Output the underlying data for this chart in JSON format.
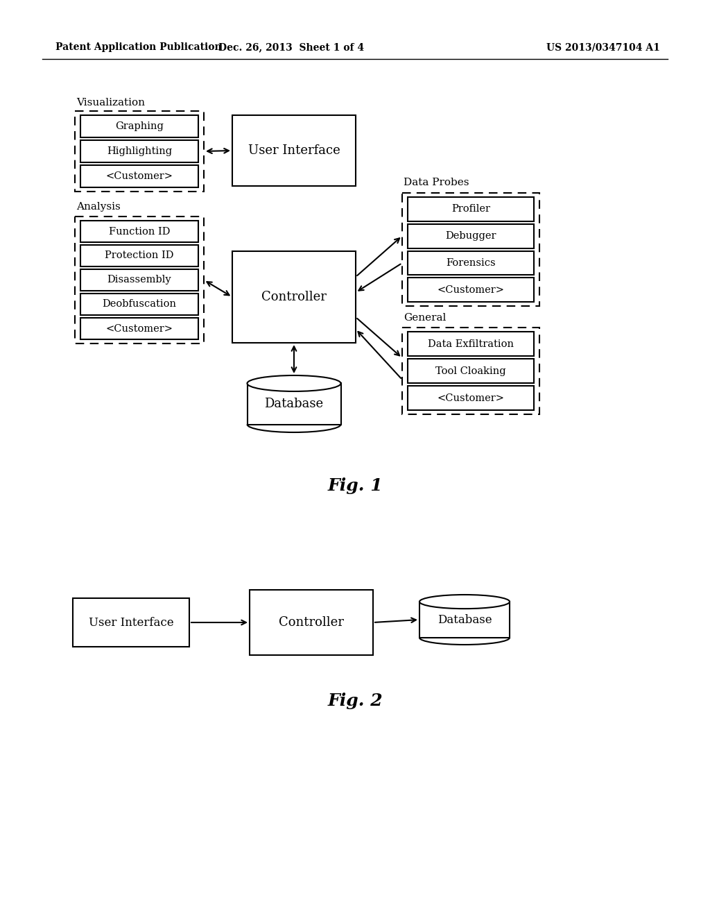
{
  "bg_color": "#ffffff",
  "header_left": "Patent Application Publication",
  "header_mid": "Dec. 26, 2013  Sheet 1 of 4",
  "header_right": "US 2013/0347104 A1",
  "fig1_label": "Fig. 1",
  "fig2_label": "Fig. 2",
  "vis_label": "Visualization",
  "vis_items": [
    "Graphing",
    "Highlighting",
    "<Customer>"
  ],
  "ui_label": "User Interface",
  "analysis_label": "Analysis",
  "analysis_items": [
    "Function ID",
    "Protection ID",
    "Disassembly",
    "Deobfuscation",
    "<Customer>"
  ],
  "ctrl_label": "Controller",
  "db_label": "Database",
  "dp_label": "Data Probes",
  "dp_items": [
    "Profiler",
    "Debugger",
    "Forensics",
    "<Customer>"
  ],
  "gen_label": "General",
  "gen_items": [
    "Data Exfiltration",
    "Tool Cloaking",
    "<Customer>"
  ],
  "fig2_ui_label": "User Interface",
  "fig2_ctrl_label": "Controller",
  "fig2_db_label": "Database"
}
